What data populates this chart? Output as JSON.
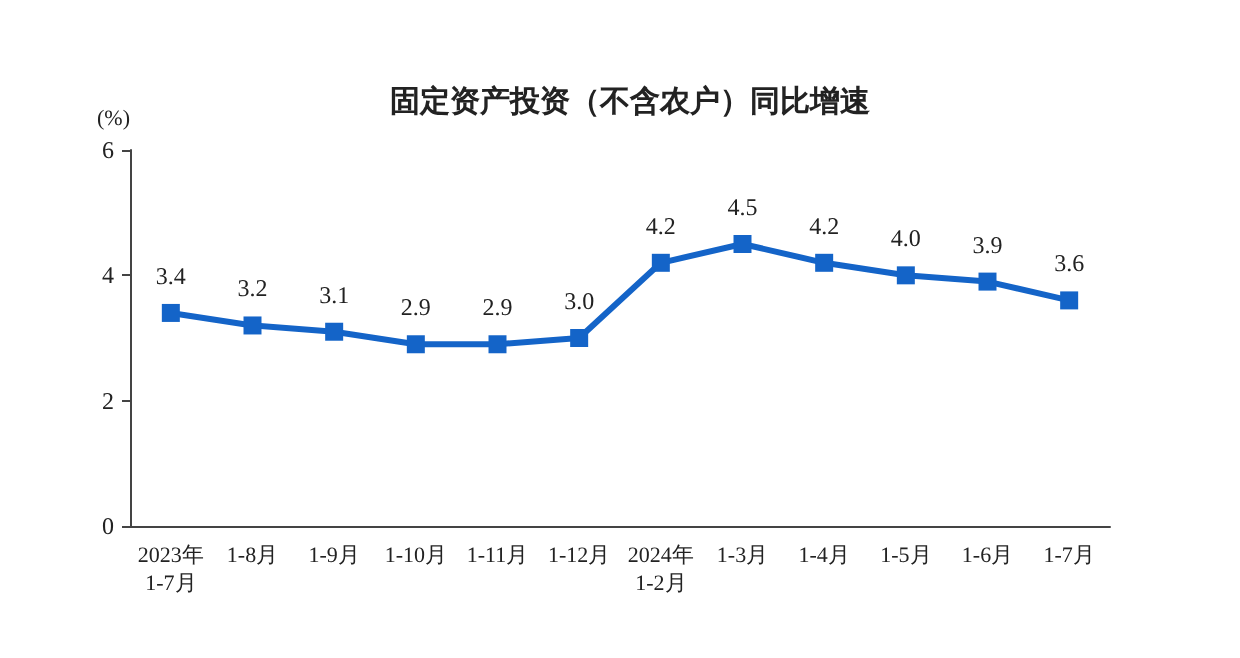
{
  "chart_data": {
    "type": "line",
    "title": "固定资产投资（不含农户）同比增速",
    "ylabel": "(%)",
    "categories": [
      "2023年\n1-7月",
      "1-8月",
      "1-9月",
      "1-10月",
      "1-11月",
      "1-12月",
      "2024年\n1-2月",
      "1-3月",
      "1-4月",
      "1-5月",
      "1-6月",
      "1-7月"
    ],
    "values": [
      3.4,
      3.2,
      3.1,
      2.9,
      2.9,
      3.0,
      4.2,
      4.5,
      4.2,
      4.0,
      3.9,
      3.6
    ],
    "value_labels": [
      "3.4",
      "3.2",
      "3.1",
      "2.9",
      "2.9",
      "3.0",
      "4.2",
      "4.5",
      "4.2",
      "4.0",
      "3.9",
      "3.6"
    ],
    "color": "#1464c8",
    "marker": "square",
    "line_style": "solid",
    "ylim": [
      0,
      6
    ],
    "yticks": [
      0,
      2,
      4,
      6
    ],
    "grid": false
  }
}
